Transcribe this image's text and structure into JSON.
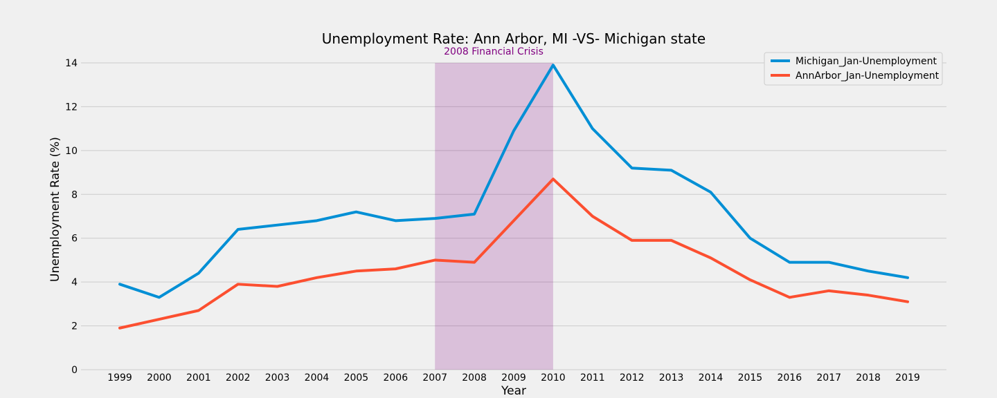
{
  "chart_data": {
    "type": "line",
    "title": "Unemployment Rate: Ann Arbor, MI -VS- Michigan state",
    "xlabel": "Year",
    "ylabel": "Unemployment Rate (%)",
    "ylim": [
      0,
      14
    ],
    "yticks": [
      0,
      2,
      4,
      6,
      8,
      10,
      12,
      14
    ],
    "x": [
      "1999",
      "2000",
      "2001",
      "2002",
      "2003",
      "2004",
      "2005",
      "2006",
      "2007",
      "2008",
      "2009",
      "2010",
      "2011",
      "2012",
      "2013",
      "2014",
      "2015",
      "2016",
      "2017",
      "2018",
      "2019"
    ],
    "grid": "horizontal",
    "legend_position": "top-right",
    "series": [
      {
        "name": "Michigan_Jan-Unemployment",
        "color": "#008fd5",
        "values": [
          3.9,
          3.3,
          4.4,
          6.4,
          6.6,
          6.8,
          7.2,
          6.8,
          6.9,
          7.1,
          10.9,
          13.9,
          11.0,
          9.2,
          9.1,
          8.1,
          6.0,
          4.9,
          4.9,
          4.5,
          4.2
        ]
      },
      {
        "name": "AnnArbor_Jan-Unemployment",
        "color": "#fc4f30",
        "values": [
          1.9,
          2.3,
          2.7,
          3.9,
          3.8,
          4.2,
          4.5,
          4.6,
          5.0,
          4.9,
          6.8,
          8.7,
          7.0,
          5.9,
          5.9,
          5.1,
          4.1,
          3.3,
          3.6,
          3.4,
          3.1
        ]
      }
    ],
    "shaded_region": {
      "x_start": "2007",
      "x_end": "2010",
      "color": "#800080",
      "label": "2008 Financial Crisis"
    }
  }
}
